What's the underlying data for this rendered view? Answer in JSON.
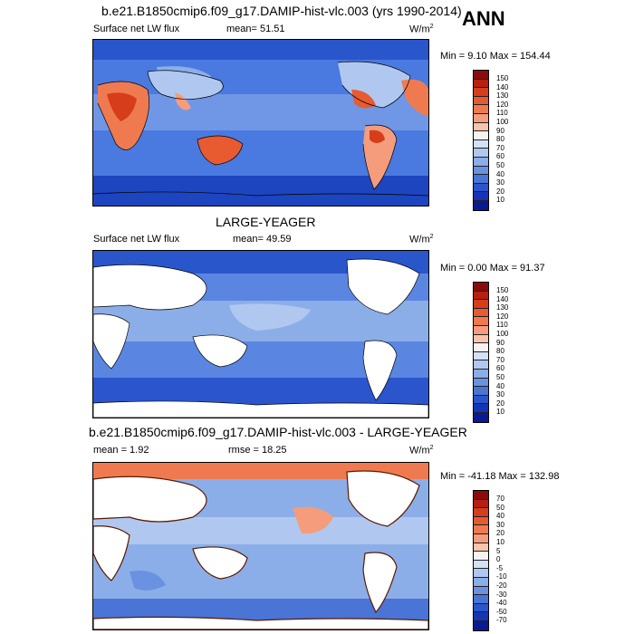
{
  "season": "ANN",
  "units_main": "W/m",
  "units_sup": "2",
  "panels": [
    {
      "title": "b.e21.B1850cmip6.f09_g17.DAMIP-hist-vlc.003 (yrs 1990-2014)",
      "left_label": "Surface net LW flux",
      "stat_label": "mean=",
      "stat_value": "51.51",
      "minmax": "Min =   9.10 Max = 154.44",
      "levels": [
        "150",
        "140",
        "130",
        "120",
        "110",
        "100",
        "90",
        "80",
        "70",
        "60",
        "50",
        "40",
        "30",
        "20",
        "10"
      ],
      "colors": [
        "#8b0a0a",
        "#b5200f",
        "#d63d1a",
        "#e85a30",
        "#f07a50",
        "#f49c7c",
        "#f8c4ad",
        "#f7f2ef",
        "#d2e1f6",
        "#b0c8f0",
        "#8caee8",
        "#6a92e0",
        "#4a74d6",
        "#2b55cc",
        "#1535b8",
        "#0a1a90"
      ]
    },
    {
      "title": "LARGE-YEAGER",
      "left_label": "Surface net LW flux",
      "stat_label": "mean=",
      "stat_value": "49.59",
      "minmax": "Min =   0.00 Max =  91.37",
      "levels": [
        "150",
        "140",
        "130",
        "120",
        "110",
        "100",
        "90",
        "80",
        "70",
        "60",
        "50",
        "40",
        "30",
        "20",
        "10"
      ],
      "colors": [
        "#8b0a0a",
        "#b5200f",
        "#d63d1a",
        "#e85a30",
        "#f07a50",
        "#f49c7c",
        "#f8c4ad",
        "#f7f2ef",
        "#d2e1f6",
        "#b0c8f0",
        "#8caee8",
        "#6a92e0",
        "#4a74d6",
        "#2b55cc",
        "#1535b8",
        "#0a1a90"
      ]
    },
    {
      "title": "b.e21.B1850cmip6.f09_g17.DAMIP-hist-vlc.003 - LARGE-YEAGER",
      "left_label": "mean =   1.92",
      "stat_label": "rmse =",
      "stat_value": "18.25",
      "minmax": "Min = -41.18 Max = 132.98",
      "levels": [
        "70",
        "50",
        "40",
        "30",
        "20",
        "10",
        "5",
        "0",
        "-5",
        "-10",
        "-20",
        "-30",
        "-40",
        "-50",
        "-70"
      ],
      "colors": [
        "#8b0a0a",
        "#b5200f",
        "#d63d1a",
        "#e85a30",
        "#f07a50",
        "#f49c7c",
        "#f8c4ad",
        "#f7f2ef",
        "#d2e1f6",
        "#b0c8f0",
        "#8caee8",
        "#6a92e0",
        "#4a74d6",
        "#2b55cc",
        "#1535b8",
        "#0a1a90"
      ]
    }
  ]
}
